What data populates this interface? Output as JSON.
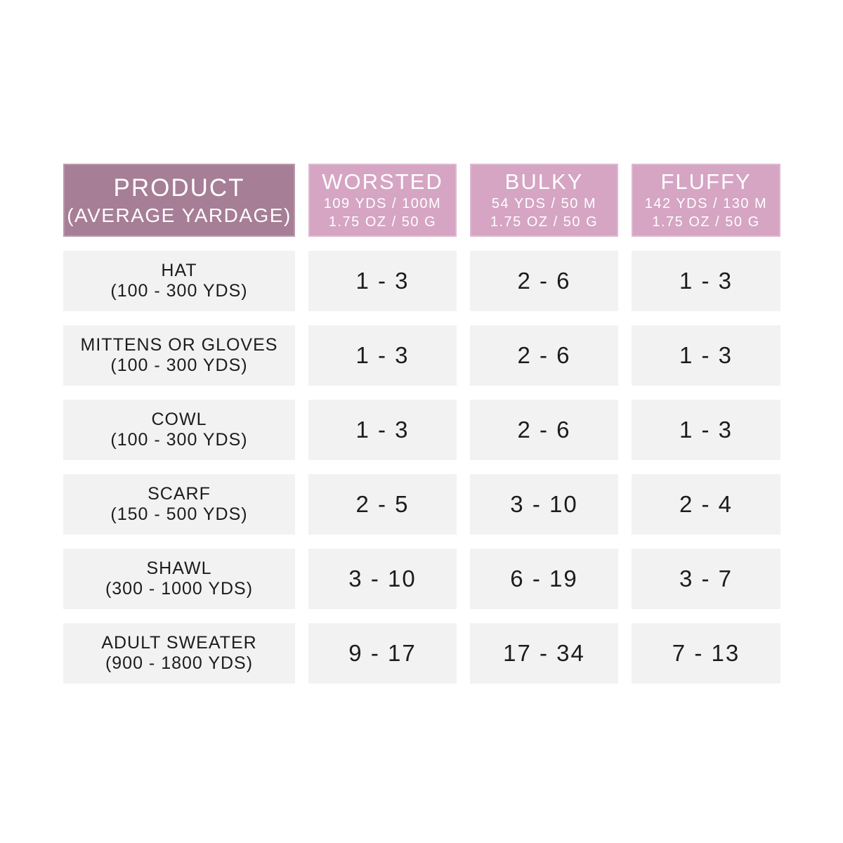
{
  "colors": {
    "product_header_bg": "#a67e96",
    "yarn_header_bg": "#d5a5c3",
    "row_bg": "#f2f2f2",
    "header_text": "#ffffff",
    "cell_text": "#1c1c1c",
    "page_bg": "#ffffff"
  },
  "table": {
    "product_header": {
      "title": "PRODUCT",
      "subtitle": "(AVERAGE YARDAGE)"
    },
    "yarn_headers": [
      {
        "name": "WORSTED",
        "line1": "109 YDS / 100M",
        "line2": "1.75 OZ / 50 G"
      },
      {
        "name": "BULKY",
        "line1": "54 YDS / 50 M",
        "line2": "1.75 OZ / 50 G"
      },
      {
        "name": "FLUFFY",
        "line1": "142 YDS / 130 M",
        "line2": "1.75 OZ / 50 G"
      }
    ],
    "rows": [
      {
        "product": "HAT",
        "yardage": "(100 - 300 YDS)",
        "worsted": "1 - 3",
        "bulky": "2 - 6",
        "fluffy": "1 - 3"
      },
      {
        "product": "MITTENS OR GLOVES",
        "yardage": "(100 - 300 YDS)",
        "worsted": "1 - 3",
        "bulky": "2 - 6",
        "fluffy": "1 - 3"
      },
      {
        "product": "COWL",
        "yardage": "(100 - 300 YDS)",
        "worsted": "1 - 3",
        "bulky": "2 - 6",
        "fluffy": "1 - 3"
      },
      {
        "product": "SCARF",
        "yardage": "(150 - 500 YDS)",
        "worsted": "2 - 5",
        "bulky": "3 - 10",
        "fluffy": "2 - 4"
      },
      {
        "product": "SHAWL",
        "yardage": "(300 - 1000 YDS)",
        "worsted": "3 - 10",
        "bulky": "6 - 19",
        "fluffy": "3 - 7"
      },
      {
        "product": "ADULT SWEATER",
        "yardage": "(900 - 1800 YDS)",
        "worsted": "9 - 17",
        "bulky": "17 - 34",
        "fluffy": "7 - 13"
      }
    ]
  },
  "chart_data": {
    "type": "table",
    "title": "Yarn skein requirements by product and yarn weight",
    "columns": [
      "PRODUCT (AVERAGE YARDAGE)",
      "WORSTED 109 YDS / 100M 1.75 OZ / 50 G",
      "BULKY 54 YDS / 50 M 1.75 OZ / 50 G",
      "FLUFFY 142 YDS / 130 M 1.75 OZ / 50 G"
    ],
    "rows": [
      [
        "HAT (100 - 300 YDS)",
        "1 - 3",
        "2 - 6",
        "1 - 3"
      ],
      [
        "MITTENS OR GLOVES (100 - 300 YDS)",
        "1 - 3",
        "2 - 6",
        "1 - 3"
      ],
      [
        "COWL (100 - 300 YDS)",
        "1 - 3",
        "2 - 6",
        "1 - 3"
      ],
      [
        "SCARF (150 - 500 YDS)",
        "2 - 5",
        "3 - 10",
        "2 - 4"
      ],
      [
        "SHAWL (300 - 1000 YDS)",
        "3 - 10",
        "6 - 19",
        "3 - 7"
      ],
      [
        "ADULT SWEATER (900 - 1800 YDS)",
        "9 - 17",
        "17 - 34",
        "7 - 13"
      ]
    ]
  }
}
